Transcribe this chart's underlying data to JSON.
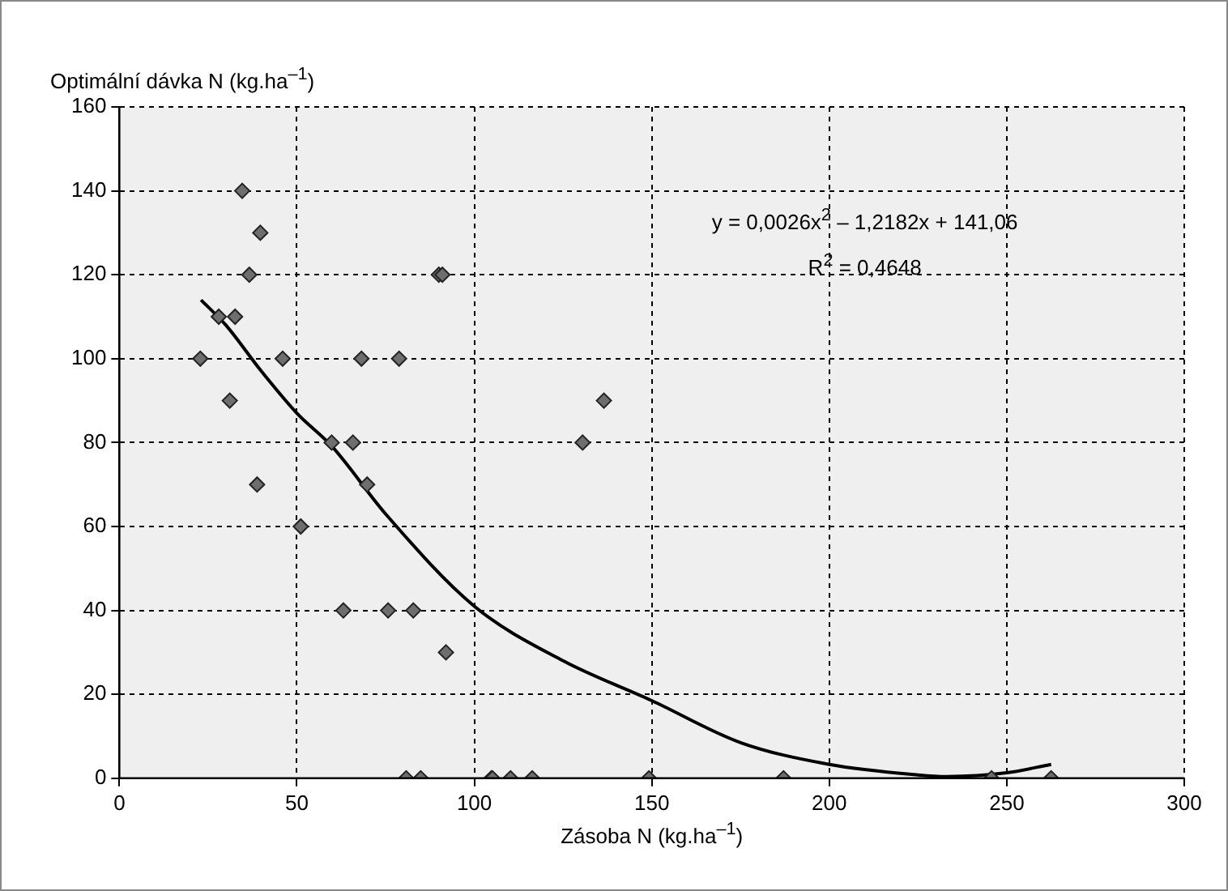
{
  "chart_data": {
    "type": "scatter",
    "xlabel": "Zásoba N (kg.ha$^{–1}$)",
    "ylabel": "Optimální dávka N (kg.ha$^{–1}$)",
    "annotations": [
      "y = 0,0026x$^{2}$ – 1,2182x + 141,06",
      "R$^{2}$ = 0,4648"
    ],
    "xlim": [
      0,
      300
    ],
    "xticks": [
      0,
      50,
      100,
      150,
      200,
      250,
      300
    ],
    "ylim": [
      0,
      160
    ],
    "yticks": [
      0,
      20,
      40,
      60,
      80,
      100,
      120,
      140,
      160
    ],
    "grid": true,
    "legend": false,
    "marker": "diamond",
    "series": [
      {
        "color": "#6e6e6e",
        "x": [
          34.6,
          39.7,
          36.6,
          90,
          91,
          28,
          32.6,
          22.8,
          46,
          68.2,
          78.8,
          31.1,
          59.8,
          65.8,
          69.8,
          38.8,
          51.1,
          63.1,
          75.7,
          82.8,
          92,
          80.8,
          84.9,
          104.8,
          105.1,
          110.2,
          116.3,
          130.5,
          136.5,
          149.2,
          187.1,
          245.7,
          262.5
        ],
        "values": [
          140,
          130,
          120,
          120,
          120,
          110,
          110,
          100,
          100,
          100,
          100,
          90,
          80,
          80,
          70,
          70,
          60,
          40,
          40,
          40,
          30,
          0,
          0,
          0,
          0,
          0,
          0,
          80,
          90,
          0,
          0,
          0,
          0
        ]
      },
      {
        "type": "line",
        "color": "#000000",
        "marker": "none",
        "line_style": "solid",
        "x": [
          23,
          30,
          40,
          50,
          60,
          75,
          100,
          125,
          150,
          175,
          200,
          225,
          233,
          250,
          262.5
        ],
        "values": [
          114,
          108,
          97,
          87,
          79,
          63,
          41,
          28,
          18.5,
          8.5,
          3.3,
          0.8,
          0.4,
          1.3,
          3.3
        ]
      }
    ]
  }
}
